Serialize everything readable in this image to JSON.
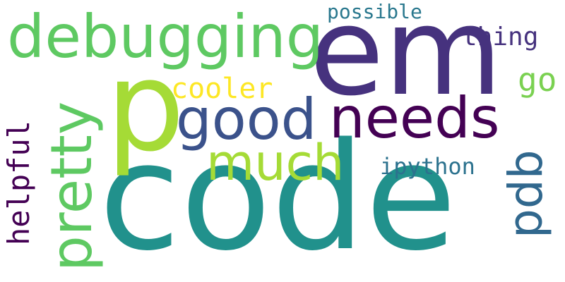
{
  "words": {
    "code": {
      "text": "code",
      "color": "#21918c"
    },
    "em": {
      "text": "em",
      "color": "#46327e"
    },
    "p": {
      "text": "p",
      "color": "#a5db36"
    },
    "debugging": {
      "text": "debugging",
      "color": "#5ec962"
    },
    "needs": {
      "text": "needs",
      "color": "#440154"
    },
    "good": {
      "text": "good",
      "color": "#3b528b"
    },
    "pretty": {
      "text": "pretty",
      "color": "#5ec962"
    },
    "much": {
      "text": "much",
      "color": "#a5db36"
    },
    "pdb": {
      "text": "pdb",
      "color": "#31688e"
    },
    "helpful": {
      "text": "helpful",
      "color": "#440154"
    },
    "cooler": {
      "text": "cooler",
      "color": "#fde725"
    },
    "ipython": {
      "text": "ipython",
      "color": "#2c728e"
    },
    "thing": {
      "text": "thing",
      "color": "#46327e"
    },
    "possible": {
      "text": "possible",
      "color": "#2a788e"
    },
    "go": {
      "text": "go",
      "color": "#7ad151"
    }
  }
}
